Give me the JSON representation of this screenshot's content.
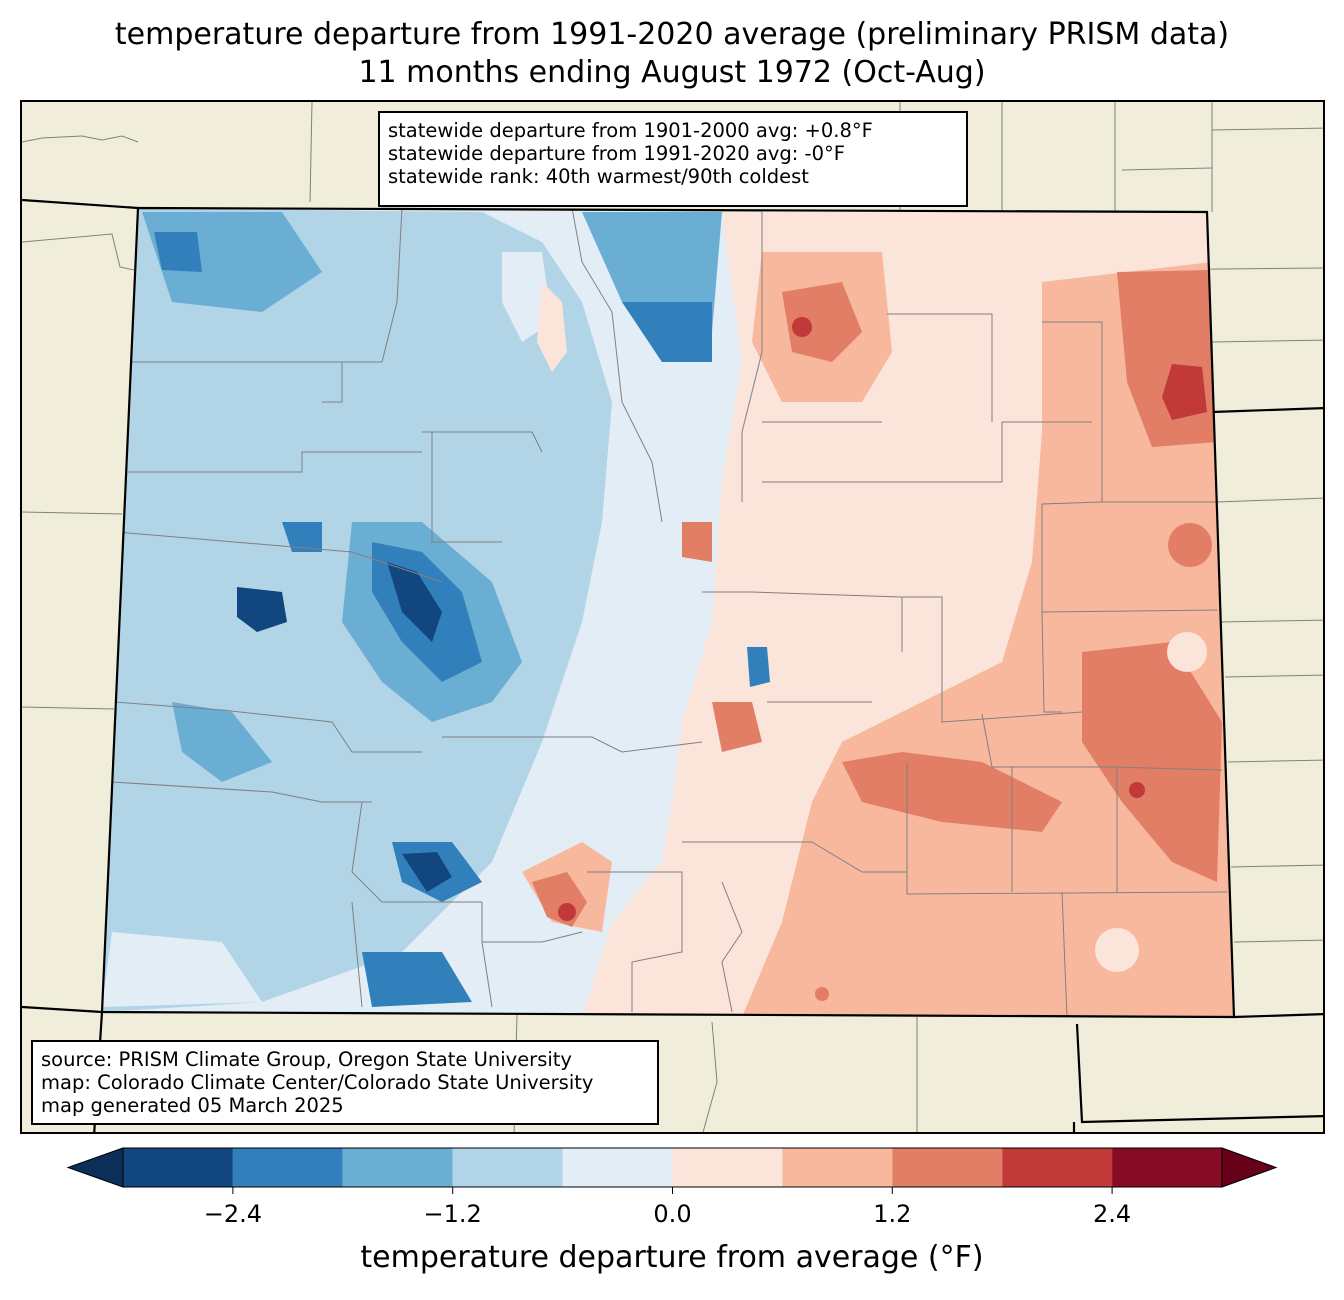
{
  "title": {
    "line1": "temperature departure from 1991-2020 average (preliminary PRISM data)",
    "line2": "11 months ending August 1972 (Oct-Aug)"
  },
  "stats": {
    "line1": "statewide departure from 1901-2000 avg: +0.8°F",
    "line2": "statewide departure from 1991-2020 avg: -0°F",
    "line3": "statewide rank: 40th warmest/90th coldest"
  },
  "source": {
    "line1": "source: PRISM Climate Group, Oregon State University",
    "line2": "map: Colorado Climate Center/Colorado State University",
    "line3": "map generated 05 March 2025"
  },
  "colorbar": {
    "label": "temperature departure from average (°F)",
    "bins": [
      -3.0,
      -2.4,
      -1.8,
      -1.2,
      -0.6,
      0.0,
      0.6,
      1.2,
      1.8,
      2.4,
      3.0
    ],
    "colors": [
      "#12467e",
      "#3280bb",
      "#6aaed4",
      "#b1d4e7",
      "#e3edf5",
      "#fbe4d9",
      "#f7b89e",
      "#e27d66",
      "#c13939",
      "#860c25"
    ],
    "under_color": "#0b2e5a",
    "over_color": "#670019",
    "ticks": [
      {
        "value": -2.4,
        "label": "−2.4"
      },
      {
        "value": -1.2,
        "label": "−1.2"
      },
      {
        "value": 0.0,
        "label": "0.0"
      },
      {
        "value": 1.2,
        "label": "1.2"
      },
      {
        "value": 2.4,
        "label": "2.4"
      }
    ]
  },
  "map_colors": {
    "background": "#f0eedb",
    "county_lines": "#808080",
    "state_lines": "#000000"
  }
}
